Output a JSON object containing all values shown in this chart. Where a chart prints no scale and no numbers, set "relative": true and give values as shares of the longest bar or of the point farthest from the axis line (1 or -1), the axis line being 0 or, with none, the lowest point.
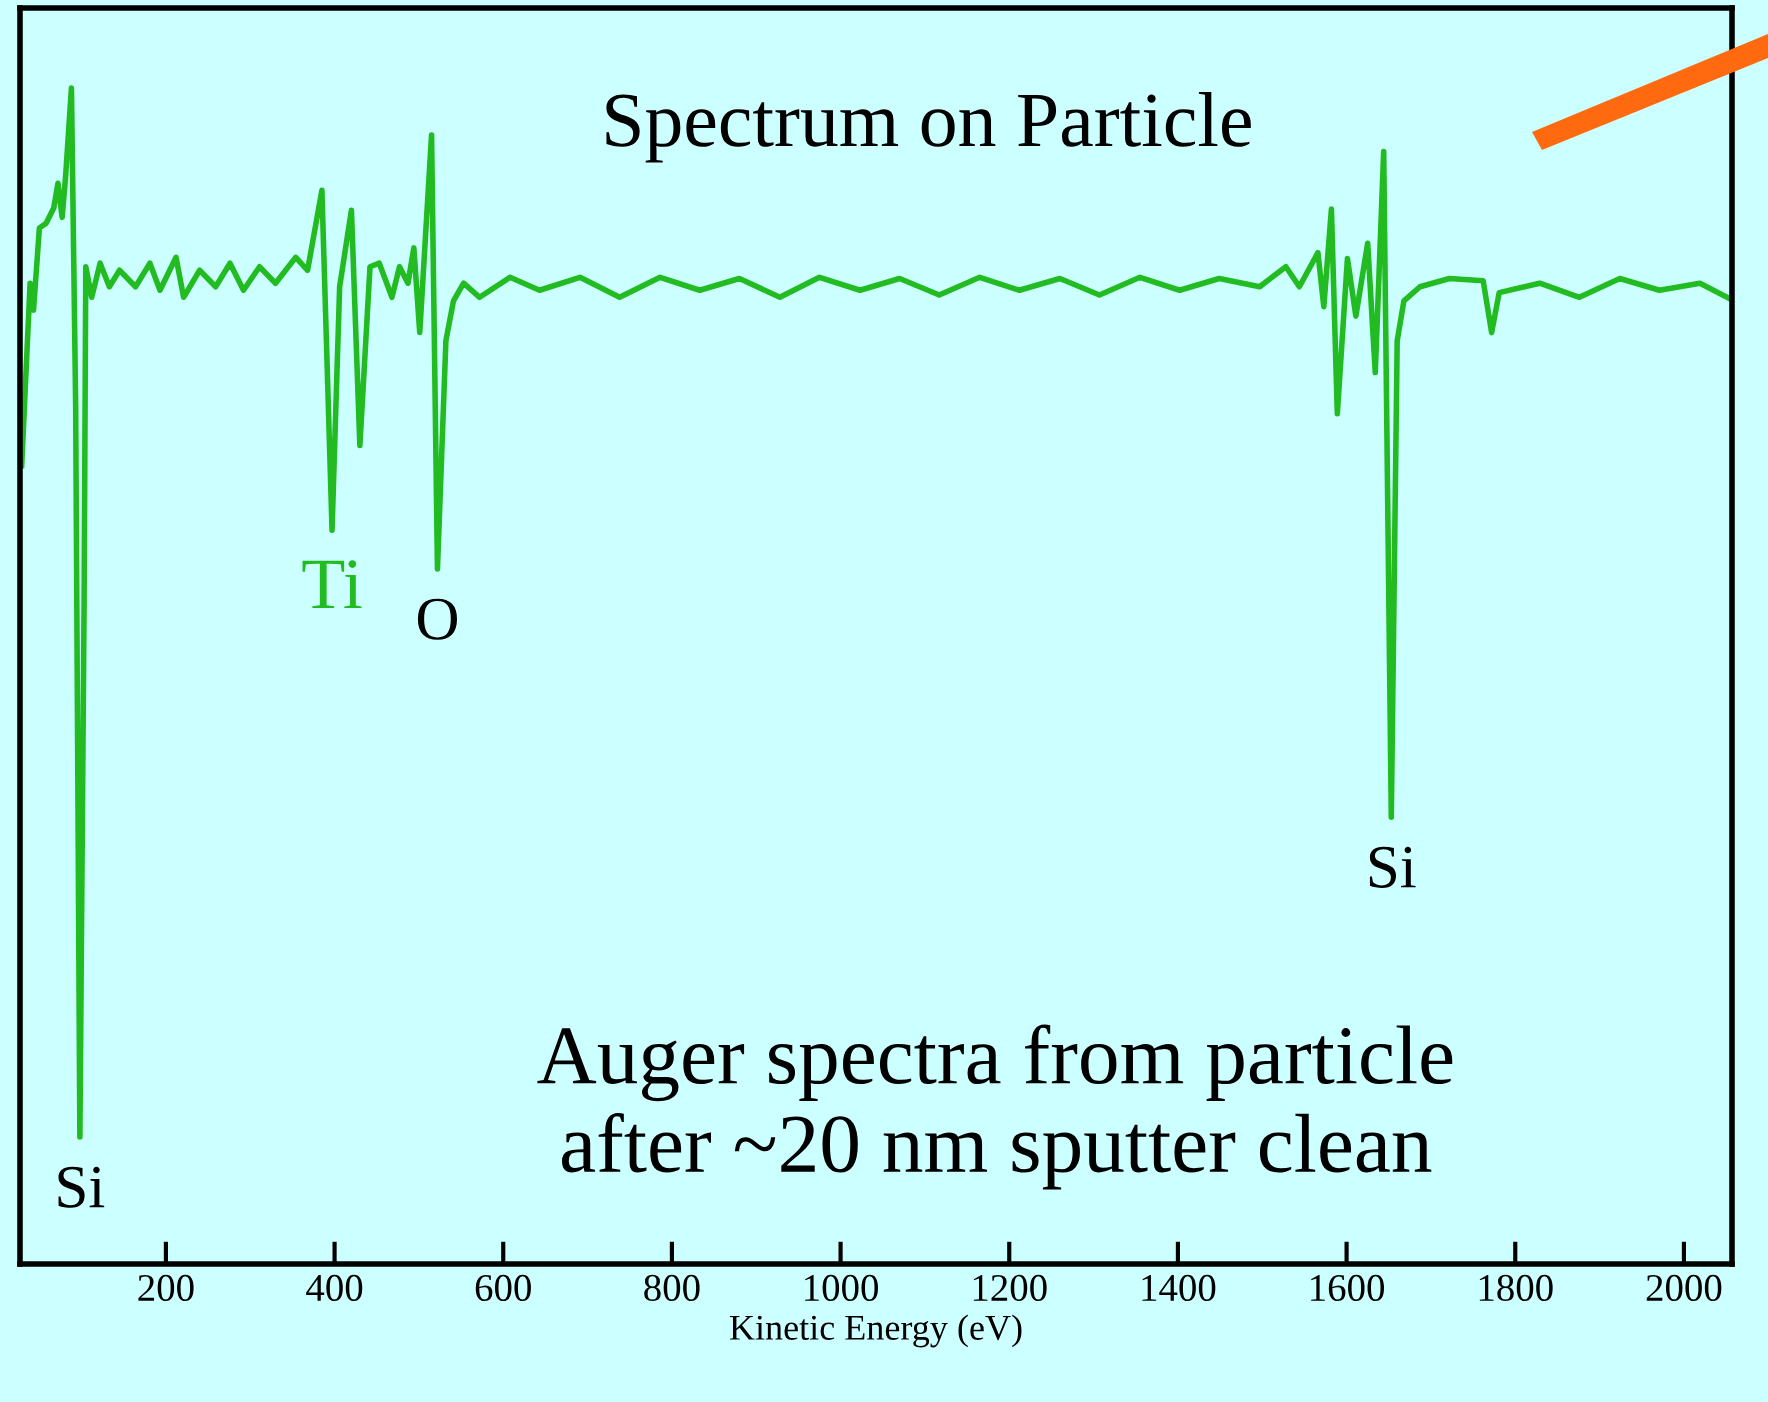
{
  "chart_data": {
    "type": "line",
    "title": "Spectrum on Particle",
    "xlabel": "Kinetic Energy (eV)",
    "relative": true,
    "grid": false,
    "xlim": [
      27,
      2057
    ],
    "xticks": [
      200,
      400,
      600,
      800,
      1000,
      1200,
      1400,
      1600,
      1800,
      2000
    ],
    "series": [
      {
        "color": "#22bb22",
        "x": [
          29,
          39,
          43,
          50,
          58,
          67,
          72,
          77,
          81,
          88,
          93,
          98,
          103,
          105,
          112,
          122,
          133,
          145,
          164,
          181,
          193,
          212,
          221,
          240,
          259,
          276,
          292,
          311,
          330,
          354,
          368,
          385,
          397,
          406,
          420,
          430,
          442,
          453,
          468,
          477,
          487,
          494,
          501,
          515,
          522,
          532,
          541,
          553,
          572,
          608,
          643,
          691,
          738,
          786,
          833,
          880,
          928,
          975,
          1023,
          1070,
          1117,
          1165,
          1212,
          1260,
          1307,
          1355,
          1402,
          1449,
          1497,
          1528,
          1544,
          1566,
          1573,
          1582,
          1589,
          1601,
          1611,
          1625,
          1634,
          1644,
          1653,
          1660,
          1668,
          1687,
          1722,
          1762,
          1772,
          1781,
          1829,
          1876,
          1924,
          1971,
          2019,
          2054
        ],
        "values": [
          0.679,
          0.834,
          0.811,
          0.881,
          0.885,
          0.898,
          0.919,
          0.89,
          0.924,
          1.0,
          0.73,
          0.108,
          0.561,
          0.848,
          0.822,
          0.851,
          0.831,
          0.845,
          0.831,
          0.851,
          0.828,
          0.856,
          0.822,
          0.845,
          0.831,
          0.851,
          0.828,
          0.848,
          0.834,
          0.856,
          0.845,
          0.913,
          0.624,
          0.831,
          0.896,
          0.696,
          0.848,
          0.851,
          0.822,
          0.848,
          0.834,
          0.864,
          0.792,
          0.96,
          0.591,
          0.785,
          0.819,
          0.834,
          0.822,
          0.839,
          0.828,
          0.839,
          0.822,
          0.839,
          0.828,
          0.838,
          0.822,
          0.839,
          0.828,
          0.838,
          0.824,
          0.839,
          0.828,
          0.838,
          0.824,
          0.839,
          0.828,
          0.838,
          0.831,
          0.848,
          0.831,
          0.86,
          0.814,
          0.897,
          0.723,
          0.855,
          0.806,
          0.868,
          0.758,
          0.946,
          0.38,
          0.785,
          0.819,
          0.831,
          0.838,
          0.836,
          0.792,
          0.826,
          0.834,
          0.822,
          0.838,
          0.828,
          0.834,
          0.821
        ]
      }
    ],
    "annotations": [
      {
        "text": "Si",
        "x": 98,
        "y": 0.108
      },
      {
        "text": "Ti",
        "x": 397,
        "y": 0.624
      },
      {
        "text": "O",
        "x": 522,
        "y": 0.591
      },
      {
        "text": "Si",
        "x": 1653,
        "y": 0.38
      },
      "Auger spectra from particle\nafter ~20 nm sputter clean"
    ]
  }
}
